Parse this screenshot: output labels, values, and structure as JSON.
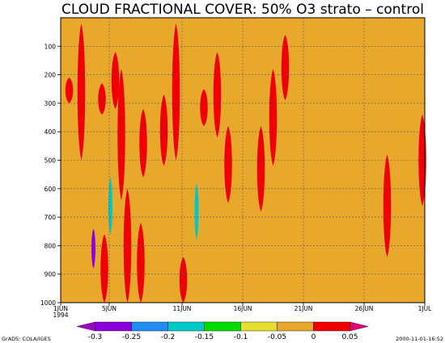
{
  "chart_data": {
    "type": "heatmap",
    "title": "CLOUD FRACTIONAL COVER: 50% O3 strato – control",
    "background_value_color": "#e8a82c",
    "x_axis": {
      "kind": "date",
      "range": [
        "1994-06-01",
        "1994-07-01"
      ],
      "ticks": [
        {
          "date": "1994-06-01",
          "label": "1JUN",
          "sublabel": "1994"
        },
        {
          "date": "1994-06-05",
          "label": "5JUN"
        },
        {
          "date": "1994-06-11",
          "label": "11JUN"
        },
        {
          "date": "1994-06-16",
          "label": "16JUN"
        },
        {
          "date": "1994-06-21",
          "label": "21JUN"
        },
        {
          "date": "1994-06-26",
          "label": "26JUN"
        },
        {
          "date": "1994-07-01",
          "label": "1JUL"
        }
      ]
    },
    "y_axis": {
      "kind": "pressure",
      "range": [
        1000,
        0
      ],
      "inverted": true,
      "ticks": [
        100,
        200,
        300,
        400,
        500,
        600,
        700,
        800,
        900,
        1000
      ]
    },
    "grid": true,
    "colorbar": {
      "bounds": [
        "-0.3",
        "-0.25",
        "-0.2",
        "-0.15",
        "-0.1",
        "-0.05",
        "0",
        "0.05"
      ],
      "colors": [
        "#a000c8",
        "#8c00dc",
        "#1e8cf0",
        "#00c8c8",
        "#00dc00",
        "#e6dc32",
        "#e8a82c",
        "#f00000",
        "#e60078"
      ]
    },
    "regions": [
      {
        "level": 7,
        "day": 0.7,
        "p_top": 210,
        "p_bottom": 300
      },
      {
        "level": 7,
        "day": 1.7,
        "p_top": 20,
        "p_bottom": 500
      },
      {
        "level": 7,
        "day": 3.4,
        "p_top": 230,
        "p_bottom": 340
      },
      {
        "level": 7,
        "day": 4.5,
        "p_top": 120,
        "p_bottom": 320
      },
      {
        "level": 7,
        "day": 5.0,
        "p_top": 180,
        "p_bottom": 640
      },
      {
        "level": 7,
        "day": 6.8,
        "p_top": 320,
        "p_bottom": 560
      },
      {
        "level": 7,
        "day": 8.5,
        "p_top": 270,
        "p_bottom": 520
      },
      {
        "level": 7,
        "day": 9.5,
        "p_top": 20,
        "p_bottom": 500
      },
      {
        "level": 7,
        "day": 11.8,
        "p_top": 250,
        "p_bottom": 380
      },
      {
        "level": 7,
        "day": 12.9,
        "p_top": 120,
        "p_bottom": 420
      },
      {
        "level": 7,
        "day": 13.8,
        "p_top": 380,
        "p_bottom": 650
      },
      {
        "level": 7,
        "day": 16.5,
        "p_top": 380,
        "p_bottom": 680
      },
      {
        "level": 7,
        "day": 17.5,
        "p_top": 180,
        "p_bottom": 520
      },
      {
        "level": 7,
        "day": 18.5,
        "p_top": 60,
        "p_bottom": 290
      },
      {
        "level": 7,
        "day": 26.9,
        "p_top": 480,
        "p_bottom": 840
      },
      {
        "level": 7,
        "day": 29.8,
        "p_top": 340,
        "p_bottom": 660
      },
      {
        "level": 6,
        "day": 2.5,
        "p_top": 700,
        "p_bottom": 930
      },
      {
        "level": 6,
        "day": 4.1,
        "p_top": 480,
        "p_bottom": 820
      },
      {
        "level": 7,
        "day": 3.6,
        "p_top": 760,
        "p_bottom": 1000
      },
      {
        "level": 7,
        "day": 5.5,
        "p_top": 600,
        "p_bottom": 1000
      },
      {
        "level": 7,
        "day": 6.6,
        "p_top": 720,
        "p_bottom": 1000
      },
      {
        "level": 7,
        "day": 10.1,
        "p_top": 840,
        "p_bottom": 1000
      },
      {
        "level": 3,
        "day": 4.1,
        "p_top": 560,
        "p_bottom": 760
      },
      {
        "level": 3,
        "day": 11.2,
        "p_top": 580,
        "p_bottom": 780
      },
      {
        "level": 1,
        "day": 2.7,
        "p_top": 740,
        "p_bottom": 880
      }
    ],
    "footer_left": "GrADS: COLA/IGES",
    "footer_right": "2000-11-01-16:52"
  }
}
